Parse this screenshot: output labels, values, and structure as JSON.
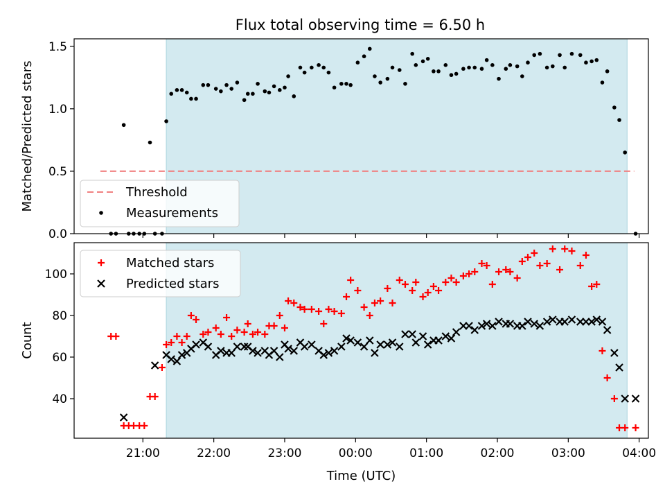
{
  "title": "Flux total observing time = 6.50 h",
  "colors": {
    "shade": "#d3eaf0",
    "threshold": "#f08080",
    "matched": "#ff0000",
    "predicted": "#000000",
    "measurement": "#000000"
  },
  "chart_data": [
    {
      "type": "scatter",
      "panel": "top",
      "title": "Flux total observing time = 6.50 h",
      "xlabel": "",
      "ylabel": "Matched/Predicted stars",
      "xlim": [
        20.03,
        28.13
      ],
      "ylim": [
        0,
        1.56
      ],
      "yticks": [
        0.0,
        0.5,
        1.0,
        1.5
      ],
      "ytick_labels": [
        "0.0",
        "0.5",
        "1.0",
        "1.5"
      ],
      "shaded_span": [
        21.33,
        27.83
      ],
      "threshold": {
        "name": "Threshold",
        "value": 0.5,
        "x_range": [
          20.4,
          27.93
        ]
      },
      "legend": {
        "placement": "lower-left",
        "entries": [
          "Threshold",
          "Measurements"
        ]
      },
      "series": [
        {
          "name": "Measurements",
          "x": [
            20.55,
            20.62,
            20.73,
            20.8,
            20.87,
            20.95,
            21.02,
            21.1,
            21.17,
            21.27,
            21.33,
            21.4,
            21.48,
            21.55,
            21.62,
            21.68,
            21.75,
            21.85,
            21.92,
            22.03,
            22.1,
            22.18,
            22.25,
            22.33,
            22.43,
            22.48,
            22.55,
            22.62,
            22.72,
            22.78,
            22.85,
            22.93,
            23.0,
            23.05,
            23.13,
            23.22,
            23.28,
            23.38,
            23.48,
            23.55,
            23.62,
            23.7,
            23.8,
            23.87,
            23.93,
            24.03,
            24.12,
            24.2,
            24.27,
            24.35,
            24.45,
            24.52,
            24.62,
            24.7,
            24.8,
            24.85,
            24.95,
            25.02,
            25.1,
            25.17,
            25.27,
            25.35,
            25.42,
            25.52,
            25.6,
            25.68,
            25.78,
            25.85,
            25.93,
            26.02,
            26.12,
            26.18,
            26.28,
            26.35,
            26.43,
            26.52,
            26.6,
            26.7,
            26.78,
            26.88,
            26.95,
            27.05,
            27.17,
            27.25,
            27.33,
            27.4,
            27.48,
            27.55,
            27.65,
            27.72,
            27.8,
            27.95
          ],
          "y": [
            0.0,
            0.0,
            0.87,
            0.0,
            0.0,
            0.0,
            0.0,
            0.73,
            0.0,
            0.0,
            0.9,
            1.12,
            1.15,
            1.15,
            1.13,
            1.08,
            1.08,
            1.19,
            1.19,
            1.16,
            1.14,
            1.19,
            1.16,
            1.21,
            1.07,
            1.12,
            1.12,
            1.2,
            1.14,
            1.13,
            1.18,
            1.15,
            1.17,
            1.26,
            1.1,
            1.33,
            1.29,
            1.33,
            1.35,
            1.33,
            1.29,
            1.17,
            1.2,
            1.2,
            1.19,
            1.37,
            1.42,
            1.48,
            1.26,
            1.21,
            1.24,
            1.33,
            1.31,
            1.2,
            1.44,
            1.35,
            1.38,
            1.4,
            1.3,
            1.3,
            1.35,
            1.27,
            1.28,
            1.32,
            1.33,
            1.33,
            1.32,
            1.39,
            1.35,
            1.24,
            1.32,
            1.35,
            1.34,
            1.26,
            1.37,
            1.43,
            1.44,
            1.33,
            1.34,
            1.43,
            1.33,
            1.44,
            1.43,
            1.37,
            1.38,
            1.39,
            1.21,
            1.3,
            1.01,
            0.91,
            0.65,
            0.0
          ]
        }
      ]
    },
    {
      "type": "scatter",
      "panel": "bottom",
      "title": "",
      "xlabel": "Time (UTC)",
      "ylabel": "Count",
      "xlim": [
        20.03,
        28.13
      ],
      "ylim": [
        21,
        115
      ],
      "yticks": [
        40,
        60,
        80,
        100
      ],
      "ytick_labels": [
        "40",
        "60",
        "80",
        "100"
      ],
      "xticks": [
        21,
        22,
        23,
        24,
        25,
        26,
        27,
        28
      ],
      "xtick_labels": [
        "21:00",
        "22:00",
        "23:00",
        "00:00",
        "01:00",
        "02:00",
        "03:00",
        "04:00"
      ],
      "shaded_span": [
        21.33,
        27.83
      ],
      "legend": {
        "placement": "top-left",
        "entries": [
          "Matched stars",
          "Predicted stars"
        ]
      },
      "series": [
        {
          "name": "Matched stars",
          "marker": "plus",
          "x": [
            20.55,
            20.62,
            20.73,
            20.8,
            20.87,
            20.95,
            21.02,
            21.1,
            21.17,
            21.27,
            21.33,
            21.4,
            21.48,
            21.55,
            21.62,
            21.68,
            21.75,
            21.85,
            21.92,
            22.03,
            22.1,
            22.18,
            22.25,
            22.33,
            22.43,
            22.48,
            22.55,
            22.62,
            22.72,
            22.78,
            22.85,
            22.93,
            23.0,
            23.05,
            23.13,
            23.22,
            23.28,
            23.38,
            23.48,
            23.55,
            23.62,
            23.7,
            23.8,
            23.87,
            23.93,
            24.03,
            24.12,
            24.2,
            24.27,
            24.35,
            24.45,
            24.52,
            24.62,
            24.7,
            24.8,
            24.85,
            24.95,
            25.02,
            25.1,
            25.17,
            25.27,
            25.35,
            25.42,
            25.52,
            25.6,
            25.68,
            25.78,
            25.85,
            25.93,
            26.02,
            26.12,
            26.18,
            26.28,
            26.35,
            26.43,
            26.52,
            26.6,
            26.7,
            26.78,
            26.88,
            26.95,
            27.05,
            27.17,
            27.25,
            27.33,
            27.4,
            27.48,
            27.55,
            27.65,
            27.72,
            27.8,
            27.95
          ],
          "y": [
            70,
            70,
            27,
            27,
            27,
            27,
            27,
            41,
            41,
            55,
            66,
            67,
            70,
            67,
            70,
            80,
            78,
            71,
            72,
            74,
            71,
            79,
            70,
            73,
            72,
            76,
            71,
            72,
            71,
            75,
            75,
            80,
            74,
            87,
            86,
            84,
            83,
            83,
            82,
            76,
            83,
            82,
            81,
            89,
            97,
            92,
            84,
            80,
            86,
            87,
            93,
            86,
            97,
            95,
            92,
            96,
            89,
            91,
            94,
            92,
            96,
            98,
            96,
            99,
            100,
            101,
            105,
            104,
            95,
            101,
            102,
            101,
            98,
            106,
            108,
            110,
            104,
            105,
            112,
            102,
            112,
            111,
            104,
            109,
            94,
            95,
            63,
            50,
            40,
            26,
            26,
            26
          ],
          "note_x_aligned": true
        },
        {
          "name": "Predicted stars",
          "marker": "x",
          "x": [
            20.73,
            21.17,
            21.33,
            21.4,
            21.48,
            21.55,
            21.62,
            21.68,
            21.75,
            21.85,
            21.92,
            22.03,
            22.1,
            22.18,
            22.25,
            22.33,
            22.43,
            22.48,
            22.55,
            22.62,
            22.72,
            22.78,
            22.85,
            22.93,
            23.0,
            23.05,
            23.13,
            23.22,
            23.28,
            23.38,
            23.48,
            23.55,
            23.62,
            23.7,
            23.8,
            23.87,
            23.93,
            24.03,
            24.12,
            24.2,
            24.27,
            24.35,
            24.45,
            24.52,
            24.62,
            24.7,
            24.8,
            24.85,
            24.95,
            25.02,
            25.1,
            25.17,
            25.27,
            25.35,
            25.42,
            25.52,
            25.6,
            25.68,
            25.78,
            25.85,
            25.93,
            26.02,
            26.12,
            26.18,
            26.28,
            26.35,
            26.43,
            26.52,
            26.6,
            26.7,
            26.78,
            26.88,
            26.95,
            27.05,
            27.17,
            27.25,
            27.33,
            27.4,
            27.48,
            27.55,
            27.65,
            27.72,
            27.8,
            27.95
          ],
          "y": [
            31,
            56,
            61,
            59,
            58,
            61,
            62,
            64,
            66,
            67,
            65,
            61,
            63,
            62,
            62,
            65,
            65,
            65,
            63,
            62,
            63,
            61,
            63,
            60,
            66,
            64,
            63,
            67,
            65,
            66,
            63,
            61,
            62,
            63,
            65,
            69,
            68,
            67,
            65,
            68,
            62,
            66,
            66,
            67,
            65,
            71,
            71,
            67,
            70,
            66,
            68,
            68,
            70,
            69,
            72,
            75,
            75,
            73,
            75,
            76,
            75,
            77,
            76,
            76,
            75,
            75,
            77,
            76,
            75,
            77,
            78,
            77,
            77,
            78,
            77,
            77,
            77,
            78,
            77,
            73,
            62,
            55,
            40,
            40
          ]
        }
      ]
    }
  ]
}
